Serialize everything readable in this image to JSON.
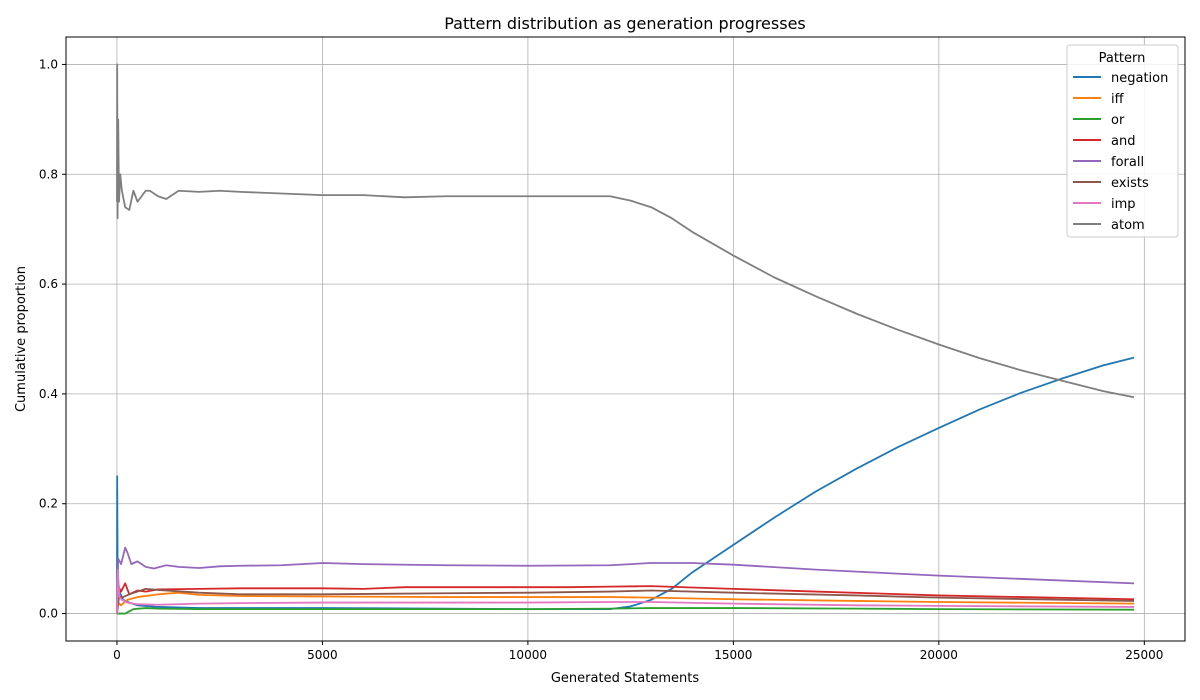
{
  "chart_data": {
    "type": "line",
    "title": "Pattern distribution as generation progresses",
    "xlabel": "Generated Statements",
    "ylabel": "Cumulative proportion",
    "xlim": [
      -1240,
      25990
    ],
    "ylim": [
      -0.05,
      1.05
    ],
    "xticks": [
      0,
      5000,
      10000,
      15000,
      20000,
      25000
    ],
    "yticks": [
      0.0,
      0.2,
      0.4,
      0.6,
      0.8,
      1.0
    ],
    "xtick_labels": [
      "0",
      "5000",
      "10000",
      "15000",
      "20000",
      "25000"
    ],
    "ytick_labels": [
      "0.0",
      "0.2",
      "0.4",
      "0.6",
      "0.8",
      "1.0"
    ],
    "grid": true,
    "legend": {
      "title": "Pattern",
      "placement": "top-right"
    },
    "series": [
      {
        "name": "negation",
        "color": "#1f77b4",
        "x": [
          0,
          5,
          15,
          30,
          60,
          150,
          300,
          500,
          1000,
          2000,
          5000,
          8000,
          10000,
          12000,
          12500,
          13000,
          13500,
          14000,
          15000,
          16000,
          17000,
          18000,
          19000,
          20000,
          21000,
          22000,
          23000,
          24000,
          24750
        ],
        "y": [
          0.0,
          0.25,
          0.1,
          0.06,
          0.04,
          0.025,
          0.02,
          0.015,
          0.012,
          0.01,
          0.01,
          0.009,
          0.008,
          0.008,
          0.013,
          0.025,
          0.045,
          0.075,
          0.125,
          0.175,
          0.222,
          0.264,
          0.303,
          0.338,
          0.372,
          0.402,
          0.428,
          0.452,
          0.466
        ]
      },
      {
        "name": "iff",
        "color": "#ff7f0e",
        "x": [
          0,
          30,
          100,
          250,
          500,
          1000,
          1500,
          2000,
          3000,
          5000,
          8000,
          10000,
          12000,
          13000,
          15000,
          18000,
          20000,
          24750
        ],
        "y": [
          0.0,
          0.02,
          0.015,
          0.025,
          0.03,
          0.035,
          0.038,
          0.034,
          0.032,
          0.031,
          0.03,
          0.03,
          0.03,
          0.029,
          0.026,
          0.023,
          0.021,
          0.018
        ]
      },
      {
        "name": "or",
        "color": "#2ca02c",
        "x": [
          0,
          200,
          400,
          700,
          1000,
          2000,
          5000,
          8000,
          10000,
          12000,
          13000,
          15000,
          18000,
          20000,
          24750
        ],
        "y": [
          0.0,
          0.0,
          0.008,
          0.01,
          0.009,
          0.008,
          0.008,
          0.008,
          0.008,
          0.009,
          0.01,
          0.01,
          0.009,
          0.008,
          0.007
        ]
      },
      {
        "name": "and",
        "color": "#d62728",
        "x": [
          0,
          30,
          100,
          200,
          300,
          500,
          700,
          1000,
          2000,
          3000,
          5000,
          6000,
          7000,
          9000,
          11000,
          12000,
          13000,
          15000,
          17000,
          20000,
          24750
        ],
        "y": [
          0.0,
          0.05,
          0.04,
          0.055,
          0.035,
          0.042,
          0.04,
          0.044,
          0.045,
          0.046,
          0.046,
          0.045,
          0.048,
          0.048,
          0.048,
          0.049,
          0.05,
          0.045,
          0.04,
          0.033,
          0.026
        ]
      },
      {
        "name": "forall",
        "color": "#9467bd",
        "x": [
          0,
          30,
          100,
          200,
          260,
          350,
          500,
          700,
          900,
          1200,
          1500,
          2000,
          2500,
          3000,
          4000,
          5000,
          6000,
          8000,
          10000,
          12000,
          13000,
          14000,
          15000,
          17000,
          20000,
          24750
        ],
        "y": [
          0.0,
          0.1,
          0.09,
          0.12,
          0.11,
          0.09,
          0.095,
          0.085,
          0.082,
          0.088,
          0.085,
          0.083,
          0.086,
          0.087,
          0.088,
          0.092,
          0.09,
          0.088,
          0.087,
          0.088,
          0.092,
          0.092,
          0.089,
          0.08,
          0.069,
          0.055
        ]
      },
      {
        "name": "exists",
        "color": "#8c564b",
        "x": [
          0,
          50,
          150,
          300,
          500,
          700,
          1000,
          2000,
          3000,
          5000,
          8000,
          10000,
          12000,
          13000,
          15000,
          18000,
          20000,
          24750
        ],
        "y": [
          0.0,
          0.03,
          0.03,
          0.035,
          0.04,
          0.045,
          0.043,
          0.038,
          0.035,
          0.035,
          0.037,
          0.038,
          0.04,
          0.042,
          0.038,
          0.033,
          0.029,
          0.023
        ]
      },
      {
        "name": "imp",
        "color": "#e377c2",
        "x": [
          0,
          20,
          60,
          120,
          250,
          500,
          1000,
          2000,
          3000,
          5000,
          8000,
          10000,
          12000,
          13000,
          15000,
          18000,
          20000,
          24750
        ],
        "y": [
          0.0,
          0.08,
          0.03,
          0.025,
          0.02,
          0.017,
          0.016,
          0.018,
          0.019,
          0.02,
          0.02,
          0.02,
          0.021,
          0.021,
          0.018,
          0.015,
          0.014,
          0.012
        ]
      },
      {
        "name": "atom",
        "color": "#7f7f7f",
        "x": [
          0,
          5,
          15,
          30,
          50,
          80,
          120,
          200,
          300,
          400,
          500,
          700,
          800,
          1000,
          1200,
          1500,
          2000,
          2500,
          3000,
          4000,
          5000,
          6000,
          7000,
          8000,
          9000,
          10000,
          11000,
          12000,
          12500,
          13000,
          13500,
          14000,
          15000,
          16000,
          17000,
          18000,
          19000,
          20000,
          21000,
          22000,
          23000,
          24000,
          24750
        ],
        "y": [
          0.75,
          1.0,
          0.72,
          0.9,
          0.75,
          0.8,
          0.77,
          0.74,
          0.735,
          0.77,
          0.75,
          0.77,
          0.77,
          0.76,
          0.755,
          0.77,
          0.768,
          0.77,
          0.768,
          0.765,
          0.762,
          0.762,
          0.758,
          0.76,
          0.76,
          0.76,
          0.76,
          0.76,
          0.752,
          0.74,
          0.72,
          0.695,
          0.652,
          0.612,
          0.578,
          0.546,
          0.517,
          0.49,
          0.465,
          0.443,
          0.424,
          0.405,
          0.394
        ]
      }
    ]
  }
}
